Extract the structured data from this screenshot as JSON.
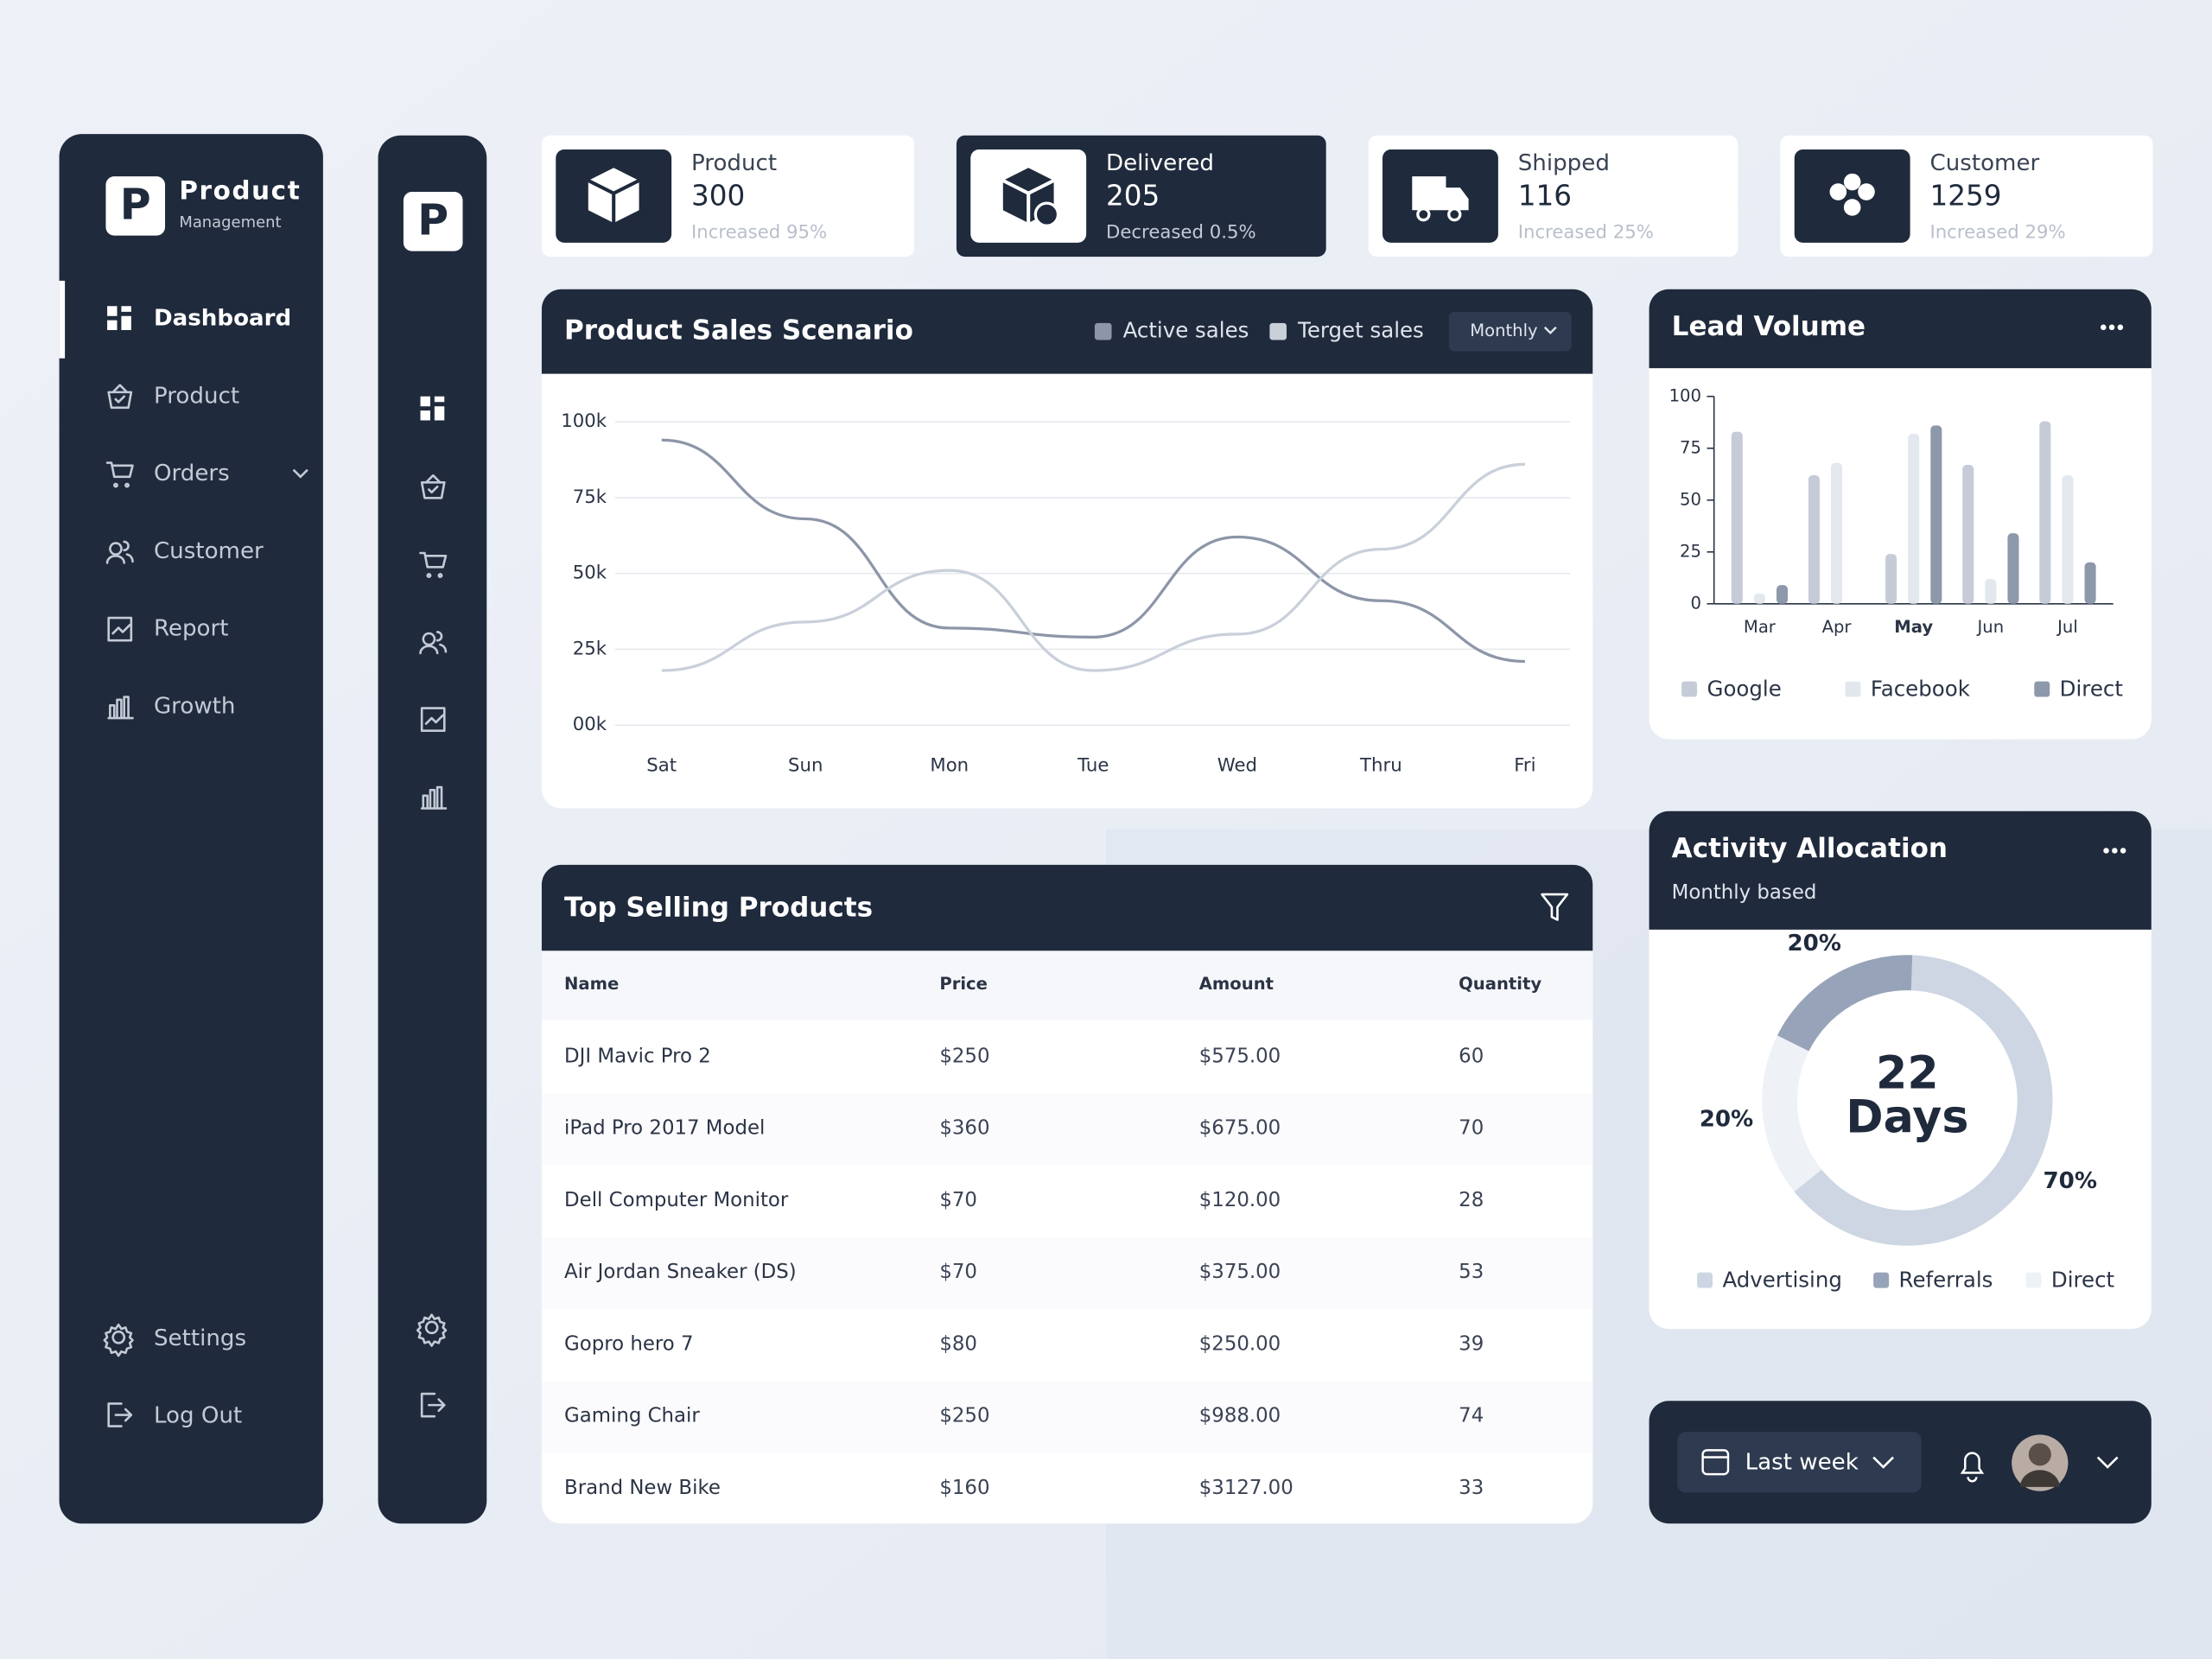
{
  "brand": {
    "logo": "P",
    "name": "Product",
    "tagline": "Management"
  },
  "nav": [
    "Dashboard",
    "Product",
    "Orders",
    "Customer",
    "Report",
    "Growth"
  ],
  "nav_bottom": [
    "Settings",
    "Log Out"
  ],
  "stats": [
    {
      "label": "Product",
      "value": 300,
      "change": "Increased 95%"
    },
    {
      "label": "Delivered",
      "value": 205,
      "change": "Decreased 0.5%"
    },
    {
      "label": "Shipped",
      "value": 116,
      "change": "Increased 25%"
    },
    {
      "label": "Customer",
      "value": 1259,
      "change": "Increased 29%"
    }
  ],
  "chart_data": [
    {
      "type": "line",
      "title": "Product Sales Scenario",
      "dropdown": "Monthly",
      "categories": [
        "Sat",
        "Sun",
        "Mon",
        "Tue",
        "Wed",
        "Thru",
        "Fri"
      ],
      "series": [
        {
          "name": "Active sales",
          "color": "#8d96a8",
          "values": [
            94000,
            68000,
            32000,
            29000,
            62000,
            41000,
            21000
          ]
        },
        {
          "name": "Terget sales",
          "color": "#c9d0da",
          "values": [
            18000,
            34000,
            51000,
            18000,
            30000,
            58000,
            86000
          ]
        }
      ],
      "ylim": [
        0,
        100000
      ],
      "yticks": [
        {
          "value": 0,
          "label": "00k"
        },
        {
          "value": 25000,
          "label": "25k"
        },
        {
          "value": 50000,
          "label": "50k"
        },
        {
          "value": 75000,
          "label": "75k"
        },
        {
          "value": 100000,
          "label": "100k"
        }
      ],
      "grid": true
    },
    {
      "type": "bar",
      "title": "Lead Volume",
      "categories": [
        "Mar",
        "Apr",
        "May",
        "Jun",
        "Jul"
      ],
      "series": [
        {
          "name": "Google",
          "color": "#c5ccd7",
          "values": [
            83,
            62,
            24,
            67,
            88
          ]
        },
        {
          "name": "Facebook",
          "color": "#e3e7ee",
          "values": [
            5,
            68,
            82,
            12,
            62
          ]
        },
        {
          "name": "Direct",
          "color": "#8e98ab",
          "values": [
            9,
            0,
            86,
            34,
            20
          ]
        }
      ],
      "ylim": [
        0,
        100
      ],
      "yticks": [
        0,
        25,
        50,
        75,
        100
      ]
    },
    {
      "type": "donut",
      "title": "Activity Allocation",
      "subtitle": "Monthly based",
      "center_value": 22,
      "center_label": "Days",
      "categories": [
        "Advertising",
        "Referrals",
        "Direct"
      ],
      "values": [
        70,
        20,
        20
      ],
      "value_labels": [
        "70%",
        "20%",
        "20%"
      ],
      "colors": [
        "#cdd6e2",
        "#97a3b8",
        "#eef2f7"
      ]
    }
  ],
  "table": {
    "title": "Top Selling Products",
    "columns": [
      "Name",
      "Price",
      "Amount",
      "Quantity"
    ],
    "rows": [
      [
        "DJI Mavic Pro 2",
        "$250",
        "$575.00",
        60
      ],
      [
        "iPad Pro 2017 Model",
        "$360",
        "$675.00",
        70
      ],
      [
        "Dell Computer Monitor",
        "$70",
        "$120.00",
        28
      ],
      [
        "Air Jordan Sneaker (DS)",
        "$70",
        "$375.00",
        53
      ],
      [
        "Gopro hero 7",
        "$80",
        "$250.00",
        39
      ],
      [
        "Gaming Chair",
        "$250",
        "$988.00",
        74
      ],
      [
        "Brand New Bike",
        "$160",
        "$3127.00",
        33
      ]
    ]
  },
  "footer": {
    "period": "Last week"
  }
}
